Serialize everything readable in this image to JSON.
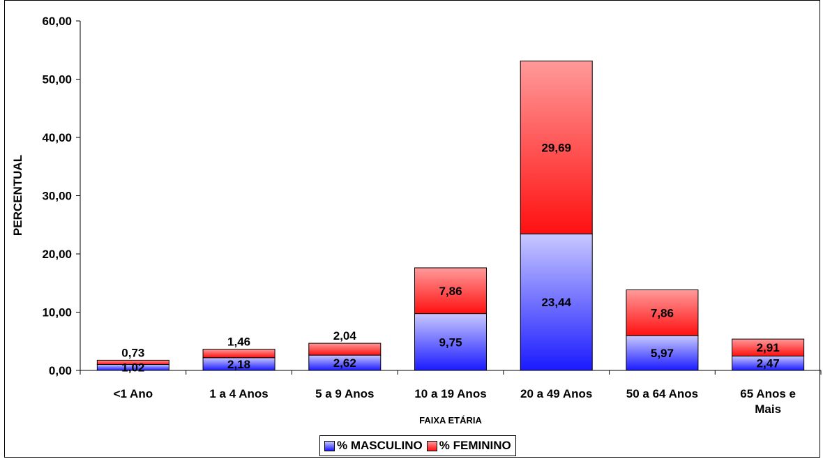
{
  "chart_data": {
    "type": "bar",
    "stacked": true,
    "categories": [
      "<1 Ano",
      "1 a 4 Anos",
      "5 a 9 Anos",
      "10 a 19 Anos",
      "20 a 49 Anos",
      "50 a 64 Anos",
      "65 Anos e Mais"
    ],
    "series": [
      {
        "name": "% MASCULINO",
        "values": [
          1.02,
          2.18,
          2.62,
          9.75,
          23.44,
          5.97,
          2.47
        ],
        "labels": [
          "1,02",
          "2,18",
          "2,62",
          "9,75",
          "23,44",
          "5,97",
          "2,47"
        ],
        "color": "#3333ff"
      },
      {
        "name": "% FEMININO",
        "values": [
          0.73,
          1.46,
          2.04,
          7.86,
          29.69,
          7.86,
          2.91
        ],
        "labels": [
          "0,73",
          "1,46",
          "2,04",
          "7,86",
          "29,69",
          "7,86",
          "2,91"
        ],
        "color": "#ff2222"
      }
    ],
    "xlabel": "FAIXA ETÁRIA",
    "ylabel": "PERCENTUAL",
    "ylim": [
      0,
      60
    ],
    "yticks": [
      "0,00",
      "10,00",
      "20,00",
      "30,00",
      "40,00",
      "50,00",
      "60,00"
    ],
    "grid": false,
    "legend_position": "bottom"
  }
}
